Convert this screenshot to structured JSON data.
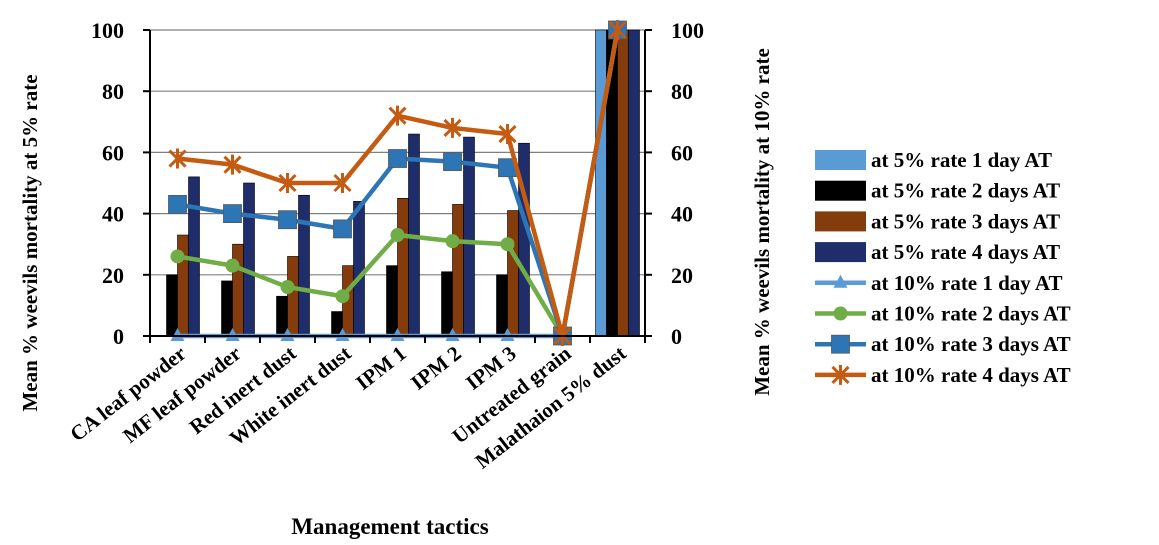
{
  "chart_data": {
    "type": "bar",
    "categories": [
      "CA leaf powder",
      "MF leaf powder",
      "Red inert dust",
      "White inert dust",
      "IPM 1",
      "IPM 2",
      "IPM 3",
      "Untreated grain",
      "Malathaion 5% dust"
    ],
    "xlabel": "Management tactics",
    "ylabel": "Mean % weevils mortality at 5% rate",
    "y2label": "Mean % weevils mortality at 10% rate",
    "ylim": [
      0,
      100
    ],
    "y2lim": [
      0,
      100
    ],
    "yticks": [
      0,
      20,
      40,
      60,
      80,
      100
    ],
    "grid": true,
    "legend_position": "right",
    "bar_series": [
      {
        "name": "at 5% rate  1 day AT",
        "color": "#5b9bd5",
        "values": [
          0,
          0,
          0,
          0,
          0,
          0,
          0,
          0,
          100
        ]
      },
      {
        "name": "at 5% rate  2 days AT",
        "color": "#000000",
        "values": [
          20,
          18,
          13,
          8,
          23,
          21,
          20,
          0,
          100
        ]
      },
      {
        "name": "at 5% rate  3 days AT",
        "color": "#843c0c",
        "values": [
          33,
          30,
          26,
          23,
          45,
          43,
          41,
          0,
          100
        ]
      },
      {
        "name": "at 5% rate  4 days AT",
        "color": "#1f2d6b",
        "values": [
          52,
          50,
          46,
          44,
          66,
          65,
          63,
          0,
          100
        ]
      }
    ],
    "line_series": [
      {
        "name": "at 10% rate  1 day AT",
        "color": "#5b9bd5",
        "marker": "triangle",
        "values": [
          0,
          0,
          0,
          0,
          0,
          0,
          0,
          0,
          100
        ]
      },
      {
        "name": "at 10% rate  2 days AT",
        "color": "#70ad47",
        "marker": "circle",
        "values": [
          26,
          23,
          16,
          13,
          33,
          31,
          30,
          0,
          100
        ]
      },
      {
        "name": "at 10% rate  3 days AT",
        "color": "#2e75b6",
        "marker": "square",
        "values": [
          43,
          40,
          38,
          35,
          58,
          57,
          55,
          0,
          100
        ]
      },
      {
        "name": "at 10% rate  4 days AT",
        "color": "#c55a11",
        "marker": "star",
        "values": [
          58,
          56,
          50,
          50,
          72,
          68,
          66,
          0,
          100
        ]
      }
    ]
  }
}
